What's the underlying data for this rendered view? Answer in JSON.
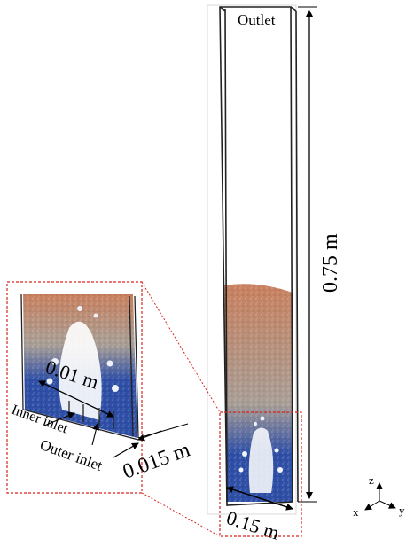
{
  "labels": {
    "outlet": "Outlet",
    "height": "0.75 m",
    "width": "0.15 m",
    "inner_inlet_width": "0.01 m",
    "outer_inlet_width": "0.015 m",
    "inner_inlet": "Inner inlet",
    "outer_inlet": "Outer inlet"
  },
  "axes": {
    "z": "z",
    "x": "x",
    "y": "y"
  },
  "colors": {
    "bed_top": "#c8805e",
    "bed_mid": "#a89e96",
    "bed_bottom": "#2f4fa6",
    "zoom_box": "#d9261c"
  }
}
